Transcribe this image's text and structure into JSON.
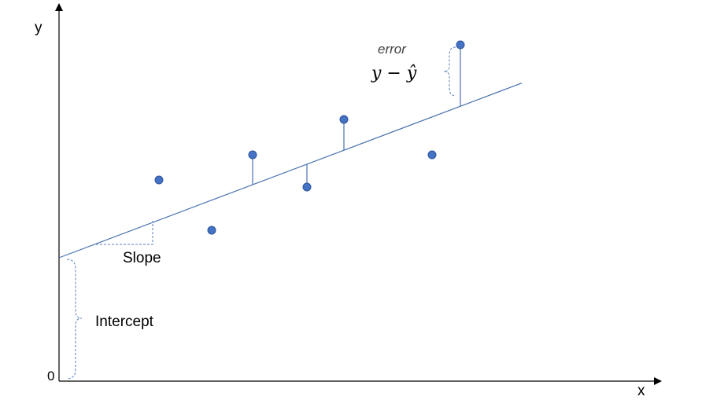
{
  "axes": {
    "y_label": "y",
    "x_label": "x",
    "origin_label": "0"
  },
  "labels": {
    "slope": "Slope",
    "intercept": "Intercept",
    "error": "error",
    "error_formula": "y − ŷ"
  },
  "colors": {
    "axis": "#000000",
    "line": "#4a72b0",
    "point_fill": "#4472c4",
    "point_stroke": "#2f5597",
    "brace": "#5b7fc0"
  },
  "chart_data": {
    "type": "scatter",
    "title": "",
    "xlabel": "x",
    "ylabel": "y",
    "xlim": [
      0,
      765
    ],
    "ylim": [
      0,
      480
    ],
    "regression_line": {
      "intercept": 157,
      "slope": 0.378,
      "x_range": [
        0,
        588
      ]
    },
    "points": [
      {
        "x": 127,
        "y": 256
      },
      {
        "x": 194,
        "y": 192
      },
      {
        "x": 246,
        "y": 288
      },
      {
        "x": 315,
        "y": 247
      },
      {
        "x": 362,
        "y": 333
      },
      {
        "x": 474,
        "y": 288
      },
      {
        "x": 510,
        "y": 428
      }
    ],
    "residuals_shown_for": [
      2,
      3,
      4,
      6
    ]
  }
}
